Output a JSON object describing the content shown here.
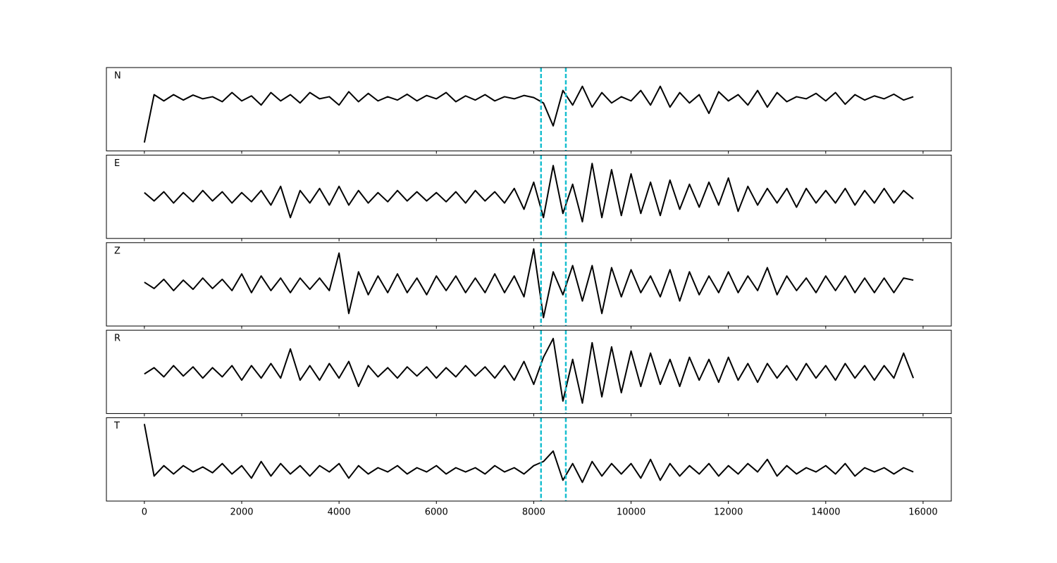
{
  "sharex": true,
  "chart_data": [
    {
      "type": "line",
      "label": "N",
      "color": "#000000",
      "vlines": [
        8150,
        8660
      ],
      "vline_color": "#17becf",
      "xlim": [
        -780,
        16580
      ],
      "ylim": [
        -1,
        1
      ],
      "xticks": [
        0,
        2000,
        4000,
        6000,
        8000,
        10000,
        12000,
        14000,
        16000
      ],
      "x": [
        0,
        200,
        400,
        600,
        800,
        1000,
        1200,
        1400,
        1600,
        1800,
        2000,
        2200,
        2400,
        2600,
        2800,
        3000,
        3200,
        3400,
        3600,
        3800,
        4000,
        4200,
        4400,
        4600,
        4800,
        5000,
        5200,
        5400,
        5600,
        5800,
        6000,
        6200,
        6400,
        6600,
        6800,
        7000,
        7200,
        7400,
        7600,
        7800,
        8000,
        8200,
        8400,
        8600,
        8800,
        9000,
        9200,
        9400,
        9600,
        9800,
        10000,
        10200,
        10400,
        10600,
        10800,
        11000,
        11200,
        11400,
        11600,
        11800,
        12000,
        12200,
        12400,
        12600,
        12800,
        13000,
        13200,
        13400,
        13600,
        13800,
        14000,
        14200,
        14400,
        14600,
        14800,
        15000,
        15200,
        15400,
        15600,
        15800
      ],
      "values": [
        -0.8,
        0.35,
        0.2,
        0.35,
        0.22,
        0.34,
        0.25,
        0.3,
        0.18,
        0.4,
        0.2,
        0.32,
        0.1,
        0.4,
        0.2,
        0.35,
        0.15,
        0.4,
        0.25,
        0.3,
        0.1,
        0.42,
        0.18,
        0.38,
        0.2,
        0.3,
        0.22,
        0.36,
        0.2,
        0.33,
        0.25,
        0.4,
        0.18,
        0.32,
        0.22,
        0.35,
        0.2,
        0.3,
        0.25,
        0.33,
        0.28,
        0.15,
        -0.4,
        0.45,
        0.1,
        0.55,
        0.05,
        0.4,
        0.15,
        0.3,
        0.2,
        0.45,
        0.1,
        0.55,
        0.05,
        0.4,
        0.15,
        0.35,
        -0.1,
        0.42,
        0.2,
        0.35,
        0.1,
        0.45,
        0.05,
        0.4,
        0.18,
        0.3,
        0.25,
        0.38,
        0.2,
        0.4,
        0.12,
        0.35,
        0.22,
        0.32,
        0.25,
        0.36,
        0.22,
        0.3
      ]
    },
    {
      "type": "line",
      "label": "E",
      "color": "#000000",
      "vlines": [
        8150,
        8660
      ],
      "vline_color": "#17becf",
      "xlim": [
        -780,
        16580
      ],
      "ylim": [
        -1,
        1
      ],
      "xticks": [
        0,
        2000,
        4000,
        6000,
        8000,
        10000,
        12000,
        14000,
        16000
      ],
      "x": [
        0,
        200,
        400,
        600,
        800,
        1000,
        1200,
        1400,
        1600,
        1800,
        2000,
        2200,
        2400,
        2600,
        2800,
        3000,
        3200,
        3400,
        3600,
        3800,
        4000,
        4200,
        4400,
        4600,
        4800,
        5000,
        5200,
        5400,
        5600,
        5800,
        6000,
        6200,
        6400,
        6600,
        6800,
        7000,
        7200,
        7400,
        7600,
        7800,
        8000,
        8200,
        8400,
        8600,
        8800,
        9000,
        9200,
        9400,
        9600,
        9800,
        10000,
        10200,
        10400,
        10600,
        10800,
        11000,
        11200,
        11400,
        11600,
        11800,
        12000,
        12200,
        12400,
        12600,
        12800,
        13000,
        13200,
        13400,
        13600,
        13800,
        14000,
        14200,
        14400,
        14600,
        14800,
        15000,
        15200,
        15400,
        15600,
        15800
      ],
      "values": [
        0.1,
        -0.1,
        0.12,
        -0.15,
        0.1,
        -0.12,
        0.15,
        -0.1,
        0.12,
        -0.15,
        0.1,
        -0.12,
        0.15,
        -0.2,
        0.25,
        -0.5,
        0.15,
        -0.15,
        0.2,
        -0.2,
        0.25,
        -0.2,
        0.15,
        -0.15,
        0.1,
        -0.12,
        0.15,
        -0.1,
        0.12,
        -0.1,
        0.1,
        -0.12,
        0.12,
        -0.15,
        0.15,
        -0.1,
        0.12,
        -0.15,
        0.2,
        -0.3,
        0.35,
        -0.5,
        0.75,
        -0.4,
        0.3,
        -0.6,
        0.8,
        -0.5,
        0.65,
        -0.45,
        0.55,
        -0.4,
        0.35,
        -0.45,
        0.4,
        -0.3,
        0.3,
        -0.25,
        0.35,
        -0.2,
        0.45,
        -0.35,
        0.25,
        -0.2,
        0.2,
        -0.15,
        0.2,
        -0.25,
        0.2,
        -0.15,
        0.15,
        -0.15,
        0.2,
        -0.2,
        0.15,
        -0.15,
        0.2,
        -0.15,
        0.15,
        -0.05
      ]
    },
    {
      "type": "line",
      "label": "Z",
      "color": "#000000",
      "vlines": [
        8150,
        8660
      ],
      "vline_color": "#17becf",
      "xlim": [
        -780,
        16580
      ],
      "ylim": [
        -1,
        1
      ],
      "xticks": [
        0,
        2000,
        4000,
        6000,
        8000,
        10000,
        12000,
        14000,
        16000
      ],
      "x": [
        0,
        200,
        400,
        600,
        800,
        1000,
        1200,
        1400,
        1600,
        1800,
        2000,
        2200,
        2400,
        2600,
        2800,
        3000,
        3200,
        3400,
        3600,
        3800,
        4000,
        4200,
        4400,
        4600,
        4800,
        5000,
        5200,
        5400,
        5600,
        5800,
        6000,
        6200,
        6400,
        6600,
        6800,
        7000,
        7200,
        7400,
        7600,
        7800,
        8000,
        8200,
        8400,
        8600,
        8800,
        9000,
        9200,
        9400,
        9600,
        9800,
        10000,
        10200,
        10400,
        10600,
        10800,
        11000,
        11200,
        11400,
        11600,
        11800,
        12000,
        12200,
        12400,
        12600,
        12800,
        13000,
        13200,
        13400,
        13600,
        13800,
        14000,
        14200,
        14400,
        14600,
        14800,
        15000,
        15200,
        15400,
        15600,
        15800
      ],
      "values": [
        0.05,
        -0.1,
        0.12,
        -0.15,
        0.1,
        -0.12,
        0.15,
        -0.1,
        0.12,
        -0.15,
        0.25,
        -0.2,
        0.2,
        -0.15,
        0.15,
        -0.2,
        0.15,
        -0.12,
        0.15,
        -0.15,
        0.75,
        -0.7,
        0.3,
        -0.25,
        0.2,
        -0.2,
        0.25,
        -0.2,
        0.15,
        -0.25,
        0.2,
        -0.15,
        0.2,
        -0.2,
        0.15,
        -0.2,
        0.25,
        -0.2,
        0.2,
        -0.3,
        0.85,
        -0.8,
        0.3,
        -0.25,
        0.45,
        -0.4,
        0.45,
        -0.7,
        0.4,
        -0.3,
        0.35,
        -0.2,
        0.2,
        -0.3,
        0.35,
        -0.4,
        0.3,
        -0.25,
        0.2,
        -0.2,
        0.3,
        -0.2,
        0.2,
        -0.15,
        0.4,
        -0.25,
        0.2,
        -0.15,
        0.15,
        -0.2,
        0.2,
        -0.15,
        0.2,
        -0.2,
        0.15,
        -0.2,
        0.15,
        -0.2,
        0.15,
        0.1
      ]
    },
    {
      "type": "line",
      "label": "R",
      "color": "#000000",
      "vlines": [
        8150,
        8660
      ],
      "vline_color": "#17becf",
      "xlim": [
        -780,
        16580
      ],
      "ylim": [
        -1,
        1
      ],
      "xticks": [
        0,
        2000,
        4000,
        6000,
        8000,
        10000,
        12000,
        14000,
        16000
      ],
      "x": [
        0,
        200,
        400,
        600,
        800,
        1000,
        1200,
        1400,
        1600,
        1800,
        2000,
        2200,
        2400,
        2600,
        2800,
        3000,
        3200,
        3400,
        3600,
        3800,
        4000,
        4200,
        4400,
        4600,
        4800,
        5000,
        5200,
        5400,
        5600,
        5800,
        6000,
        6200,
        6400,
        6600,
        6800,
        7000,
        7200,
        7400,
        7600,
        7800,
        8000,
        8200,
        8400,
        8600,
        8800,
        9000,
        9200,
        9400,
        9600,
        9800,
        10000,
        10200,
        10400,
        10600,
        10800,
        11000,
        11200,
        11400,
        11600,
        11800,
        12000,
        12200,
        12400,
        12600,
        12800,
        13000,
        13200,
        13400,
        13600,
        13800,
        14000,
        14200,
        14400,
        14600,
        14800,
        15000,
        15200,
        15400,
        15600,
        15800
      ],
      "values": [
        -0.05,
        0.1,
        -0.12,
        0.15,
        -0.1,
        0.12,
        -0.15,
        0.1,
        -0.12,
        0.15,
        -0.2,
        0.15,
        -0.15,
        0.2,
        -0.15,
        0.55,
        -0.2,
        0.15,
        -0.2,
        0.2,
        -0.15,
        0.25,
        -0.35,
        0.15,
        -0.12,
        0.1,
        -0.15,
        0.12,
        -0.1,
        0.12,
        -0.15,
        0.1,
        -0.12,
        0.15,
        -0.1,
        0.12,
        -0.15,
        0.15,
        -0.2,
        0.25,
        -0.3,
        0.35,
        0.8,
        -0.7,
        0.3,
        -0.75,
        0.7,
        -0.6,
        0.6,
        -0.5,
        0.5,
        -0.35,
        0.45,
        -0.3,
        0.3,
        -0.35,
        0.35,
        -0.2,
        0.3,
        -0.25,
        0.35,
        -0.2,
        0.2,
        -0.25,
        0.2,
        -0.15,
        0.15,
        -0.2,
        0.2,
        -0.15,
        0.15,
        -0.2,
        0.2,
        -0.15,
        0.15,
        -0.2,
        0.15,
        -0.15,
        0.45,
        -0.15
      ]
    },
    {
      "type": "line",
      "label": "T",
      "color": "#000000",
      "vlines": [
        8150,
        8660
      ],
      "vline_color": "#17becf",
      "xlim": [
        -780,
        16580
      ],
      "ylim": [
        -1,
        1
      ],
      "xticks": [
        0,
        2000,
        4000,
        6000,
        8000,
        10000,
        12000,
        14000,
        16000
      ],
      "x": [
        0,
        200,
        400,
        600,
        800,
        1000,
        1200,
        1400,
        1600,
        1800,
        2000,
        2200,
        2400,
        2600,
        2800,
        3000,
        3200,
        3400,
        3600,
        3800,
        4000,
        4200,
        4400,
        4600,
        4800,
        5000,
        5200,
        5400,
        5600,
        5800,
        6000,
        6200,
        6400,
        6600,
        6800,
        7000,
        7200,
        7400,
        7600,
        7800,
        8000,
        8200,
        8400,
        8600,
        8800,
        9000,
        9200,
        9400,
        9600,
        9800,
        10000,
        10200,
        10400,
        10600,
        10800,
        11000,
        11200,
        11400,
        11600,
        11800,
        12000,
        12200,
        12400,
        12600,
        12800,
        13000,
        13200,
        13400,
        13600,
        13800,
        14000,
        14200,
        14400,
        14600,
        14800,
        15000,
        15200,
        15400,
        15600,
        15800
      ],
      "values": [
        0.85,
        -0.4,
        -0.15,
        -0.35,
        -0.15,
        -0.3,
        -0.18,
        -0.32,
        -0.1,
        -0.35,
        -0.15,
        -0.45,
        -0.05,
        -0.4,
        -0.1,
        -0.35,
        -0.15,
        -0.4,
        -0.15,
        -0.3,
        -0.1,
        -0.45,
        -0.15,
        -0.35,
        -0.2,
        -0.3,
        -0.15,
        -0.35,
        -0.2,
        -0.3,
        -0.15,
        -0.35,
        -0.2,
        -0.3,
        -0.2,
        -0.35,
        -0.15,
        -0.3,
        -0.2,
        -0.35,
        -0.15,
        -0.05,
        0.2,
        -0.5,
        -0.1,
        -0.55,
        -0.05,
        -0.4,
        -0.1,
        -0.35,
        -0.1,
        -0.45,
        0.0,
        -0.5,
        -0.1,
        -0.4,
        -0.15,
        -0.35,
        -0.1,
        -0.4,
        -0.15,
        -0.35,
        -0.1,
        -0.3,
        0.0,
        -0.4,
        -0.15,
        -0.35,
        -0.2,
        -0.3,
        -0.15,
        -0.35,
        -0.1,
        -0.4,
        -0.2,
        -0.3,
        -0.2,
        -0.35,
        -0.2,
        -0.3
      ]
    }
  ]
}
